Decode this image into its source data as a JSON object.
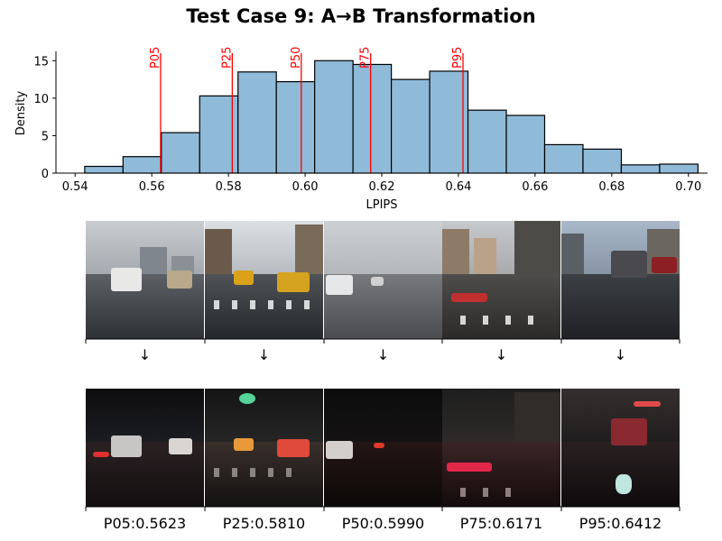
{
  "title": "Test Case 9: A→B Transformation",
  "chart_data": {
    "type": "bar",
    "subtype": "histogram",
    "xlabel": "LPIPS",
    "ylabel": "Density",
    "xlim": [
      0.535,
      0.705
    ],
    "ylim": [
      0,
      16
    ],
    "xticks": [
      0.54,
      0.56,
      0.58,
      0.6,
      0.62,
      0.64,
      0.66,
      0.68,
      0.7
    ],
    "xtick_labels": [
      "0.54",
      "0.56",
      "0.58",
      "0.60",
      "0.62",
      "0.64",
      "0.66",
      "0.68",
      "0.70"
    ],
    "yticks": [
      0,
      5,
      10,
      15
    ],
    "ytick_labels": [
      "0",
      "5",
      "10",
      "15"
    ],
    "bar_color": "#8fbbd9",
    "bin_width": 0.01,
    "bins": [
      {
        "start": 0.5425,
        "density": 0.9
      },
      {
        "start": 0.5525,
        "density": 2.2
      },
      {
        "start": 0.5625,
        "density": 5.4
      },
      {
        "start": 0.5725,
        "density": 10.3
      },
      {
        "start": 0.5825,
        "density": 13.5
      },
      {
        "start": 0.5925,
        "density": 12.2
      },
      {
        "start": 0.6025,
        "density": 15.0
      },
      {
        "start": 0.6125,
        "density": 14.5
      },
      {
        "start": 0.6225,
        "density": 12.5
      },
      {
        "start": 0.6325,
        "density": 13.6
      },
      {
        "start": 0.6425,
        "density": 8.4
      },
      {
        "start": 0.6525,
        "density": 7.7
      },
      {
        "start": 0.6625,
        "density": 3.8
      },
      {
        "start": 0.6725,
        "density": 3.2
      },
      {
        "start": 0.6825,
        "density": 1.1
      },
      {
        "start": 0.6925,
        "density": 1.2
      },
      {
        "start": 0.6725,
        "density": 0.0
      }
    ],
    "percentile_lines": [
      {
        "label": "P05",
        "value": 0.5623
      },
      {
        "label": "P25",
        "value": 0.581
      },
      {
        "label": "P50",
        "value": 0.599
      },
      {
        "label": "P75",
        "value": 0.6171
      },
      {
        "label": "P95",
        "value": 0.6412
      }
    ],
    "line_color": "#ff0000"
  },
  "arrow_symbol": "↓",
  "samples": [
    {
      "caption": "P05:0.5623"
    },
    {
      "caption": "P25:0.5810"
    },
    {
      "caption": "P50:0.5990"
    },
    {
      "caption": "P75:0.6171"
    },
    {
      "caption": "P95:0.6412"
    }
  ]
}
